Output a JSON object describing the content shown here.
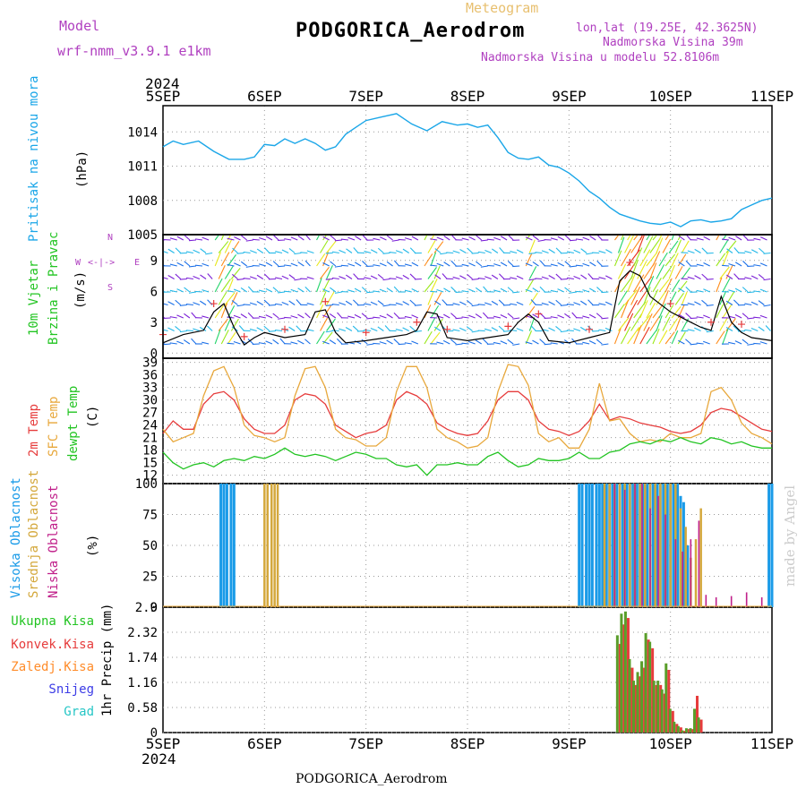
{
  "header": {
    "model_label": "Model",
    "model_name": "wrf-nmm_v3.9.1  e1km",
    "meteogram_label": "Meteogram",
    "station_title": "PODGORICA_Aerodrom",
    "coords": "lon,lat (19.25E, 42.3625N)",
    "elevation": "Nadmorska Visina 39m",
    "model_elevation": "Nadmorska Visina u modelu 52.8106m",
    "footer_title": "PODGORICA_Aerodrom",
    "watermark": "made by Angel"
  },
  "colors": {
    "pressure": "#1aa6e8",
    "temp2m": "#e63c3c",
    "sfc": "#e8a83c",
    "dew": "#22c422",
    "high_cloud": "#1a9be8",
    "mid_cloud": "#d4a83c",
    "low_cloud": "#c0208a",
    "total_precip": "#5a9e2a",
    "convective": "#e63c3c",
    "freezing": "#ff8c2a",
    "snow": "#3c3ce6",
    "hail": "#26c6c6",
    "wind_label": "#22c422",
    "wind_dir": "#b040c0"
  },
  "time_axis": {
    "year": "2024",
    "labels": [
      "5SEP",
      "6SEP",
      "7SEP",
      "8SEP",
      "9SEP",
      "10SEP",
      "11SEP"
    ]
  },
  "panel_labels": {
    "pressure": "Pritisak na nivou mora",
    "pressure_unit": "(hPa)",
    "wind_1": "10m Vjetar",
    "wind_2": "Brzina i Pravac",
    "wind_unit": "(m/s)",
    "wind_dir_n": "N",
    "wind_dir_w": "W",
    "wind_dir_e": "E",
    "wind_dir_s": "S",
    "temp_1": "2m Temp",
    "temp_2": "SFC Temp",
    "temp_3": "dewpt Temp",
    "temp_unit": "(C)",
    "cloud_1": "Visoka Oblacnost",
    "cloud_2": "Srednja Oblacnost",
    "cloud_3": "Niska Oblacnost",
    "cloud_unit": "(%)",
    "precip_unit": "1hr Precip (mm)",
    "precip_legend": [
      "Ukupna Kisa",
      "Konvek.Kisa",
      "Zaledj.Kisa",
      "Snijeg",
      "Grad"
    ]
  },
  "chart_data": [
    {
      "type": "line",
      "name": "pressure",
      "ylabel": "(hPa)",
      "ylim": [
        1005,
        1016.3
      ],
      "yticks": [
        1005,
        1008,
        1011,
        1014
      ],
      "x": [
        0,
        0.1,
        0.2,
        0.35,
        0.5,
        0.65,
        0.8,
        0.9,
        1.0,
        1.1,
        1.2,
        1.3,
        1.4,
        1.5,
        1.6,
        1.7,
        1.8,
        1.9,
        2.0,
        2.15,
        2.3,
        2.45,
        2.6,
        2.75,
        2.9,
        3.0,
        3.1,
        3.2,
        3.3,
        3.4,
        3.5,
        3.6,
        3.7,
        3.8,
        3.9,
        4.0,
        4.1,
        4.2,
        4.3,
        4.4,
        4.5,
        4.6,
        4.7,
        4.8,
        4.9,
        5.0,
        5.1,
        5.2,
        5.3,
        5.4,
        5.5,
        5.6,
        5.7,
        5.8,
        5.9,
        6.0
      ],
      "values": [
        1012.7,
        1013.2,
        1012.9,
        1013.2,
        1012.3,
        1011.6,
        1011.6,
        1011.8,
        1012.9,
        1012.8,
        1013.4,
        1013.0,
        1013.4,
        1013.0,
        1012.4,
        1012.7,
        1013.8,
        1014.4,
        1015.0,
        1015.3,
        1015.6,
        1014.7,
        1014.1,
        1014.9,
        1014.6,
        1014.7,
        1014.4,
        1014.6,
        1013.5,
        1012.2,
        1011.7,
        1011.6,
        1011.8,
        1011.1,
        1010.9,
        1010.4,
        1009.7,
        1008.8,
        1008.2,
        1007.4,
        1006.8,
        1006.5,
        1006.2,
        1006.0,
        1005.9,
        1006.1,
        1005.7,
        1006.2,
        1006.3,
        1006.1,
        1006.2,
        1006.4,
        1007.2,
        1007.6,
        1008.0,
        1008.2
      ]
    },
    {
      "type": "line",
      "name": "temperature",
      "ylabel": "(C)",
      "ylim": [
        10,
        40
      ],
      "yticks": [
        12,
        15,
        18,
        21,
        24,
        27,
        30,
        33,
        36,
        39
      ],
      "x": [
        0,
        0.1,
        0.2,
        0.3,
        0.4,
        0.5,
        0.6,
        0.7,
        0.8,
        0.9,
        1.0,
        1.1,
        1.2,
        1.3,
        1.4,
        1.5,
        1.6,
        1.7,
        1.8,
        1.9,
        2.0,
        2.1,
        2.2,
        2.3,
        2.4,
        2.5,
        2.6,
        2.7,
        2.8,
        2.9,
        3.0,
        3.1,
        3.2,
        3.3,
        3.4,
        3.5,
        3.6,
        3.7,
        3.8,
        3.9,
        4.0,
        4.1,
        4.2,
        4.3,
        4.4,
        4.5,
        4.6,
        4.7,
        4.8,
        4.9,
        5.0,
        5.1,
        5.2,
        5.3,
        5.4,
        5.5,
        5.6,
        5.7,
        5.8,
        5.9,
        6.0
      ],
      "series": [
        {
          "name": "2m Temp",
          "values": [
            22,
            25,
            23,
            23,
            29,
            31.5,
            32,
            30,
            25.5,
            23,
            22,
            22,
            24,
            30,
            31.5,
            31,
            29,
            24,
            22.5,
            21,
            22,
            22.5,
            24,
            30,
            32,
            31,
            29,
            24.5,
            23,
            22,
            21.5,
            22,
            25,
            30,
            32,
            32,
            30,
            25,
            23,
            22.5,
            21.5,
            22.5,
            25,
            29,
            25.2,
            26,
            25.5,
            24.5,
            24,
            23.5,
            22.5,
            22,
            22.5,
            24,
            27,
            28,
            27.5,
            26,
            24.5,
            23,
            22.5
          ]
        },
        {
          "name": "SFC Temp",
          "values": [
            23,
            20,
            21,
            22,
            31,
            37,
            38,
            33,
            24,
            21.5,
            21,
            20,
            21,
            31,
            37.5,
            38,
            33,
            23,
            21,
            20.5,
            19,
            19,
            21,
            32,
            38,
            38,
            33,
            23,
            21,
            20,
            18.5,
            19,
            21,
            32,
            38.5,
            38,
            33.5,
            22,
            20,
            21,
            18.5,
            18.5,
            23,
            34,
            25,
            25.5,
            22,
            20,
            20.5,
            20,
            22,
            21,
            21,
            22,
            32,
            33,
            30,
            24.5,
            22,
            21,
            19.5
          ]
        },
        {
          "name": "dewpt Temp",
          "values": [
            17.5,
            15,
            13.5,
            14.5,
            15,
            14,
            15.5,
            16,
            15.5,
            16.5,
            16,
            17,
            18.5,
            17,
            16.5,
            17,
            16.5,
            15.5,
            16.5,
            17.5,
            17,
            16,
            16,
            14.5,
            14,
            14.5,
            12,
            14.5,
            14.5,
            15,
            14.5,
            14.5,
            16.5,
            17.5,
            15.5,
            14,
            14.5,
            16,
            15.5,
            15.5,
            16,
            17.5,
            16,
            16,
            17.5,
            18,
            19.5,
            20,
            19.5,
            20.5,
            20,
            21,
            20,
            19.5,
            21,
            20.5,
            19.5,
            20,
            19,
            18.5,
            18.5
          ]
        }
      ]
    },
    {
      "type": "line",
      "name": "wind",
      "ylabel": "(m/s)",
      "ylim": [
        -0.5,
        11.5
      ],
      "yticks": [
        0,
        3,
        6,
        9
      ],
      "x": [
        0,
        0.2,
        0.4,
        0.5,
        0.6,
        0.7,
        0.8,
        0.9,
        1.0,
        1.2,
        1.4,
        1.5,
        1.6,
        1.7,
        1.8,
        2.0,
        2.2,
        2.4,
        2.5,
        2.6,
        2.7,
        2.8,
        3.0,
        3.2,
        3.4,
        3.5,
        3.6,
        3.7,
        3.8,
        4.0,
        4.2,
        4.4,
        4.5,
        4.6,
        4.7,
        4.8,
        5.0,
        5.2,
        5.3,
        5.4,
        5.5,
        5.6,
        5.7,
        5.8,
        6.0
      ],
      "values": [
        1.0,
        1.8,
        2.2,
        4.0,
        4.8,
        2.5,
        0.8,
        1.5,
        2.0,
        1.5,
        1.8,
        4.0,
        4.2,
        2.0,
        1.0,
        1.2,
        1.5,
        1.8,
        2.2,
        4.0,
        3.8,
        1.5,
        1.2,
        1.5,
        1.8,
        3.0,
        3.8,
        3.0,
        1.2,
        1.0,
        1.5,
        2.0,
        7.0,
        8.0,
        7.5,
        5.5,
        4.0,
        3.0,
        2.5,
        2.2,
        5.5,
        3.0,
        2.0,
        1.5,
        1.2
      ]
    },
    {
      "type": "bar",
      "name": "cloud_cover",
      "ylabel": "(%)",
      "ylim": [
        0,
        100
      ],
      "yticks": [
        0,
        25,
        50,
        75,
        100
      ],
      "series": [
        {
          "name": "Visoka Oblacnost",
          "x": [
            0.57,
            0.6,
            0.63,
            0.67,
            0.7,
            4.1,
            4.13,
            4.17,
            4.2,
            4.23,
            4.27,
            4.3,
            4.33,
            4.37,
            4.4,
            4.43,
            4.47,
            4.5,
            4.53,
            4.57,
            4.6,
            4.63,
            4.67,
            4.7,
            4.73,
            4.77,
            4.8,
            4.83,
            4.87,
            4.9,
            4.93,
            4.97,
            5.0,
            5.03,
            5.07,
            5.1,
            5.13,
            5.17,
            5.97,
            6.0
          ],
          "values": [
            100,
            100,
            100,
            100,
            100,
            100,
            100,
            100,
            100,
            100,
            100,
            100,
            100,
            100,
            100,
            100,
            100,
            100,
            100,
            100,
            100,
            100,
            100,
            100,
            100,
            100,
            100,
            100,
            100,
            100,
            100,
            100,
            100,
            100,
            100,
            90,
            85,
            50,
            100,
            100
          ]
        },
        {
          "name": "Srednja Oblacnost",
          "x": [
            1.0,
            1.03,
            1.07,
            1.1,
            1.13,
            4.35,
            4.4,
            4.45,
            4.5,
            4.55,
            4.6,
            4.65,
            4.7,
            4.75,
            4.8,
            4.85,
            4.9,
            4.95,
            5.0,
            5.05,
            5.1,
            5.15,
            5.2,
            5.25,
            5.3
          ],
          "values": [
            100,
            100,
            100,
            100,
            100,
            100,
            100,
            100,
            100,
            100,
            100,
            100,
            100,
            100,
            100,
            100,
            100,
            100,
            100,
            100,
            80,
            65,
            40,
            55,
            80
          ]
        },
        {
          "name": "Niska Oblacnost",
          "x": [
            4.45,
            4.55,
            4.65,
            4.72,
            4.8,
            4.88,
            4.95,
            5.05,
            5.12,
            5.2,
            5.28,
            5.35,
            5.45,
            5.6,
            5.75,
            5.9
          ],
          "values": [
            100,
            95,
            100,
            100,
            80,
            90,
            75,
            55,
            45,
            55,
            70,
            10,
            8,
            9,
            12,
            8
          ]
        }
      ]
    },
    {
      "type": "bar",
      "name": "precipitation",
      "ylabel": "1hr Precip (mm)",
      "ylim": [
        0,
        2.9
      ],
      "yticks": [
        0,
        0.58,
        1.16,
        1.74,
        2.32,
        2.9
      ],
      "x": [
        4.49,
        4.53,
        4.57,
        4.61,
        4.65,
        4.69,
        4.73,
        4.77,
        4.81,
        4.85,
        4.89,
        4.93,
        4.97,
        5.01,
        5.05,
        5.09,
        5.13,
        5.17,
        5.21,
        5.25,
        5.29,
        5.33
      ],
      "series": [
        {
          "name": "Ukupna Kisa",
          "values": [
            2.25,
            2.75,
            2.8,
            1.7,
            1.2,
            1.4,
            1.65,
            2.3,
            2.1,
            1.2,
            1.2,
            1.0,
            1.6,
            0.55,
            0.25,
            0.15,
            0.05,
            0.1,
            0.1,
            0.55,
            0.35,
            0.0
          ]
        },
        {
          "name": "Konvek.Kisa",
          "values": [
            2.05,
            2.5,
            2.65,
            1.5,
            1.1,
            1.3,
            1.5,
            2.15,
            1.95,
            1.1,
            1.1,
            0.9,
            1.45,
            0.5,
            0.2,
            0.12,
            0.04,
            0.08,
            0.08,
            0.85,
            0.3,
            0.0
          ]
        }
      ]
    }
  ]
}
